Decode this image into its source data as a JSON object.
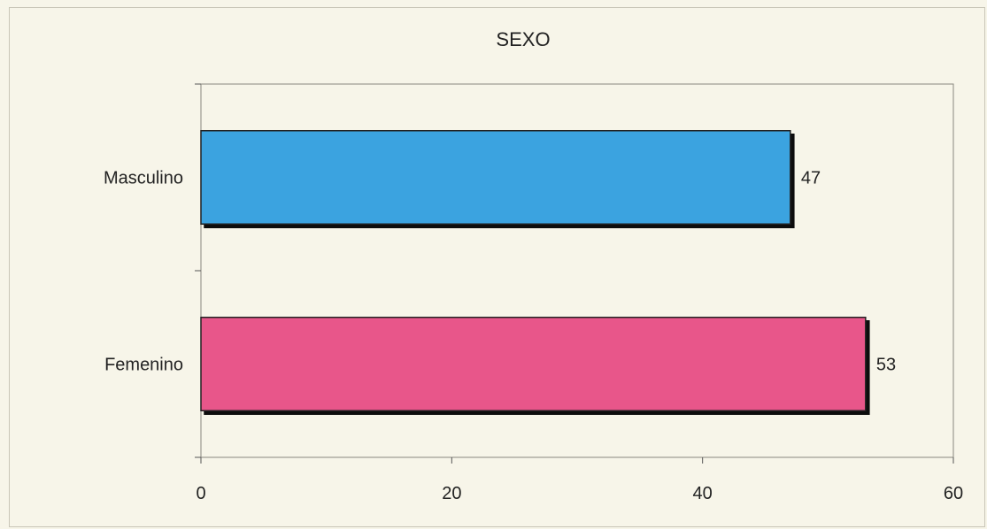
{
  "chart_data": {
    "type": "bar",
    "orientation": "horizontal",
    "title": "SEXO",
    "categories": [
      "Masculino",
      "Femenino"
    ],
    "values": [
      47,
      53
    ],
    "colors": [
      "#3aa3e0",
      "#e8578a"
    ],
    "xlim": [
      0,
      60
    ],
    "xticks": [
      0,
      20,
      40,
      60
    ],
    "grid": false,
    "legend": "none"
  }
}
